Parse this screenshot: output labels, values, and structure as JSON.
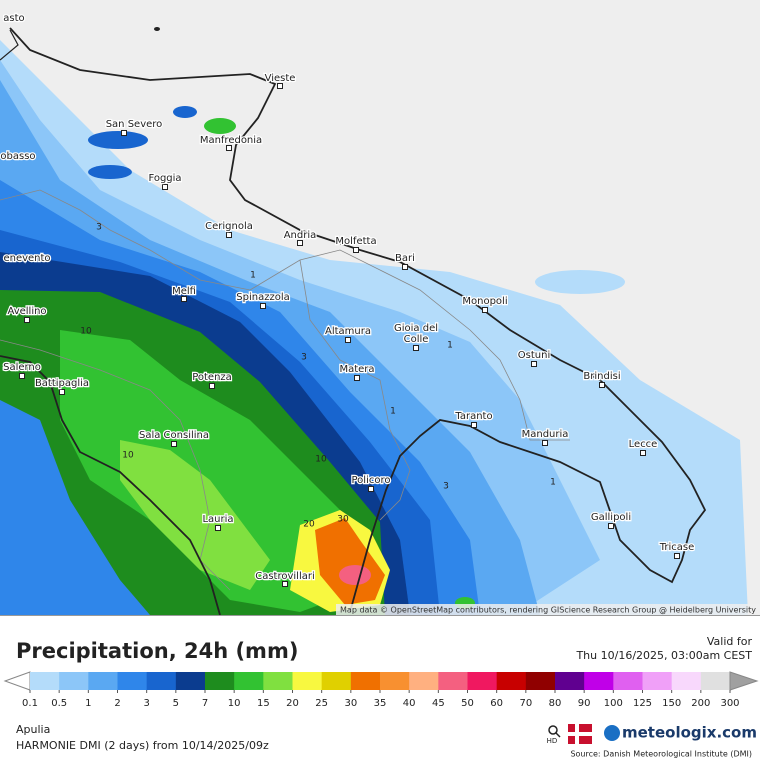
{
  "map": {
    "cities": [
      {
        "lines": [
          "asto"
        ]
      },
      {
        "lines": [
          "Vieste"
        ]
      },
      {
        "lines": [
          "San Severo"
        ]
      },
      {
        "lines": [
          "Manfredonia"
        ]
      },
      {
        "lines": [
          "obasso"
        ]
      },
      {
        "lines": [
          "Foggia"
        ]
      },
      {
        "lines": [
          "Cerignola"
        ]
      },
      {
        "lines": [
          "Andria"
        ]
      },
      {
        "lines": [
          "Molfetta"
        ]
      },
      {
        "lines": [
          "Bari"
        ]
      },
      {
        "lines": [
          "enevento"
        ]
      },
      {
        "lines": [
          "Melfi"
        ]
      },
      {
        "lines": [
          "Spinazzola"
        ]
      },
      {
        "lines": [
          "Monopoli"
        ]
      },
      {
        "lines": [
          "Avellino"
        ]
      },
      {
        "lines": [
          "Altamura"
        ]
      },
      {
        "lines": [
          "Gioia del",
          "Colle"
        ]
      },
      {
        "lines": [
          "Ostuni"
        ]
      },
      {
        "lines": [
          "Salerno"
        ]
      },
      {
        "lines": [
          "Matera"
        ]
      },
      {
        "lines": [
          "Potenza"
        ]
      },
      {
        "lines": [
          "Brindisi"
        ]
      },
      {
        "lines": [
          "Battipaglia"
        ]
      },
      {
        "lines": [
          "Taranto"
        ]
      },
      {
        "lines": [
          "Manduria"
        ]
      },
      {
        "lines": [
          "Sala Consilina"
        ]
      },
      {
        "lines": [
          "Lecce"
        ]
      },
      {
        "lines": [
          "Policoro"
        ]
      },
      {
        "lines": [
          "Gallipoli"
        ]
      },
      {
        "lines": [
          "Lauria"
        ]
      },
      {
        "lines": [
          "Tricase"
        ]
      },
      {
        "lines": [
          "Castrovillari"
        ]
      }
    ],
    "contour_labels": [
      3,
      10,
      1,
      3,
      1,
      1,
      10,
      10,
      3,
      1,
      20,
      30
    ],
    "attribution": "Map data © OpenStreetMap contributors, rendering GIScience Research Group @ Heidelberg University"
  },
  "legend": {
    "title": "Precipitation, 24h (mm)",
    "valid_label": "Valid for",
    "valid_time": "Thu 10/16/2025, 03:00am CEST",
    "ticks": [
      0.1,
      0.5,
      1,
      2,
      3,
      5,
      7,
      10,
      15,
      20,
      25,
      30,
      35,
      40,
      45,
      50,
      60,
      70,
      80,
      90,
      100,
      125,
      150,
      200,
      300
    ],
    "colors": [
      "#b4dcfa",
      "#8cc6f8",
      "#5aa8f2",
      "#2f86ea",
      "#1865cf",
      "#0b3c8f",
      "#1e8c1e",
      "#32c232",
      "#80e040",
      "#f8f840",
      "#e0d000",
      "#f07000",
      "#f89030",
      "#ffb080",
      "#f46080",
      "#f01860",
      "#c80000",
      "#900000",
      "#600090",
      "#c000e8",
      "#e060f0",
      "#f0a0f8",
      "#f8d8fc",
      "#e0e0e0"
    ]
  },
  "footer": {
    "region": "Apulia",
    "model": "HARMONIE DMI (2 days) from 10/14/2025/09z",
    "hd": "HD",
    "brand": "meteologix.com",
    "source": "Source: Danish Meteorological Institute (DMI)"
  }
}
